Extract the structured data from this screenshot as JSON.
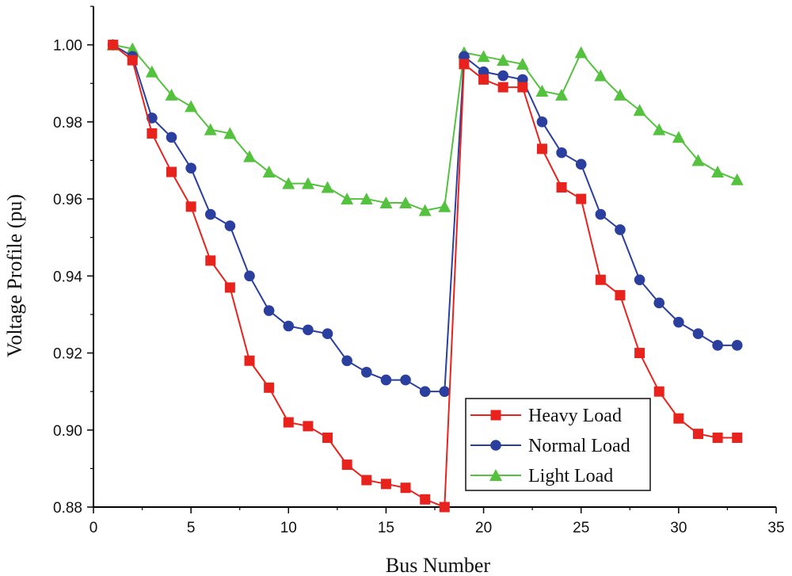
{
  "chart_data": {
    "type": "line",
    "title": "",
    "xlabel": "Bus Number",
    "ylabel": "Voltage Profile (pu)",
    "xlim": [
      0,
      35
    ],
    "ylim": [
      0.88,
      1.01
    ],
    "xticks": [
      0,
      5,
      10,
      15,
      20,
      25,
      30,
      35
    ],
    "xtick_labels": [
      "0",
      "5",
      "10",
      "15",
      "20",
      "25",
      "30",
      "35"
    ],
    "yticks": [
      0.88,
      0.9,
      0.92,
      0.94,
      0.96,
      0.98,
      1.0
    ],
    "ytick_labels": [
      "0.88",
      "0.90",
      "0.92",
      "0.94",
      "0.96",
      "0.98",
      "1.00"
    ],
    "grid": false,
    "legend_position": "bottom-right",
    "x": [
      1,
      2,
      3,
      4,
      5,
      6,
      7,
      8,
      9,
      10,
      11,
      12,
      13,
      14,
      15,
      16,
      17,
      18,
      19,
      20,
      21,
      22,
      23,
      24,
      25,
      26,
      27,
      28,
      29,
      30,
      31,
      32,
      33
    ],
    "series": [
      {
        "name": "Heavy Load",
        "color": "#e8231d",
        "marker": "square",
        "values": [
          1.0,
          0.996,
          0.977,
          0.967,
          0.958,
          0.944,
          0.937,
          0.918,
          0.911,
          0.902,
          0.901,
          0.898,
          0.891,
          0.887,
          0.886,
          0.885,
          0.882,
          0.88,
          0.995,
          0.991,
          0.989,
          0.989,
          0.973,
          0.963,
          0.96,
          0.939,
          0.935,
          0.92,
          0.91,
          0.903,
          0.899,
          0.898,
          0.898
        ]
      },
      {
        "name": "Normal Load",
        "color": "#2a3f9e",
        "marker": "circle",
        "values": [
          1.0,
          0.997,
          0.981,
          0.976,
          0.968,
          0.956,
          0.953,
          0.94,
          0.931,
          0.927,
          0.926,
          0.925,
          0.918,
          0.915,
          0.913,
          0.913,
          0.91,
          0.91,
          0.997,
          0.993,
          0.992,
          0.991,
          0.98,
          0.972,
          0.969,
          0.956,
          0.952,
          0.939,
          0.933,
          0.928,
          0.925,
          0.922,
          0.922
        ]
      },
      {
        "name": "Light Load",
        "color": "#55c23f",
        "marker": "triangle",
        "values": [
          1.0,
          0.999,
          0.993,
          0.987,
          0.984,
          0.978,
          0.977,
          0.971,
          0.967,
          0.964,
          0.964,
          0.963,
          0.96,
          0.96,
          0.959,
          0.959,
          0.957,
          0.958,
          0.998,
          0.997,
          0.996,
          0.995,
          0.988,
          0.987,
          0.998,
          0.992,
          0.987,
          0.983,
          0.978,
          0.976,
          0.97,
          0.967,
          0.965
        ]
      }
    ]
  }
}
